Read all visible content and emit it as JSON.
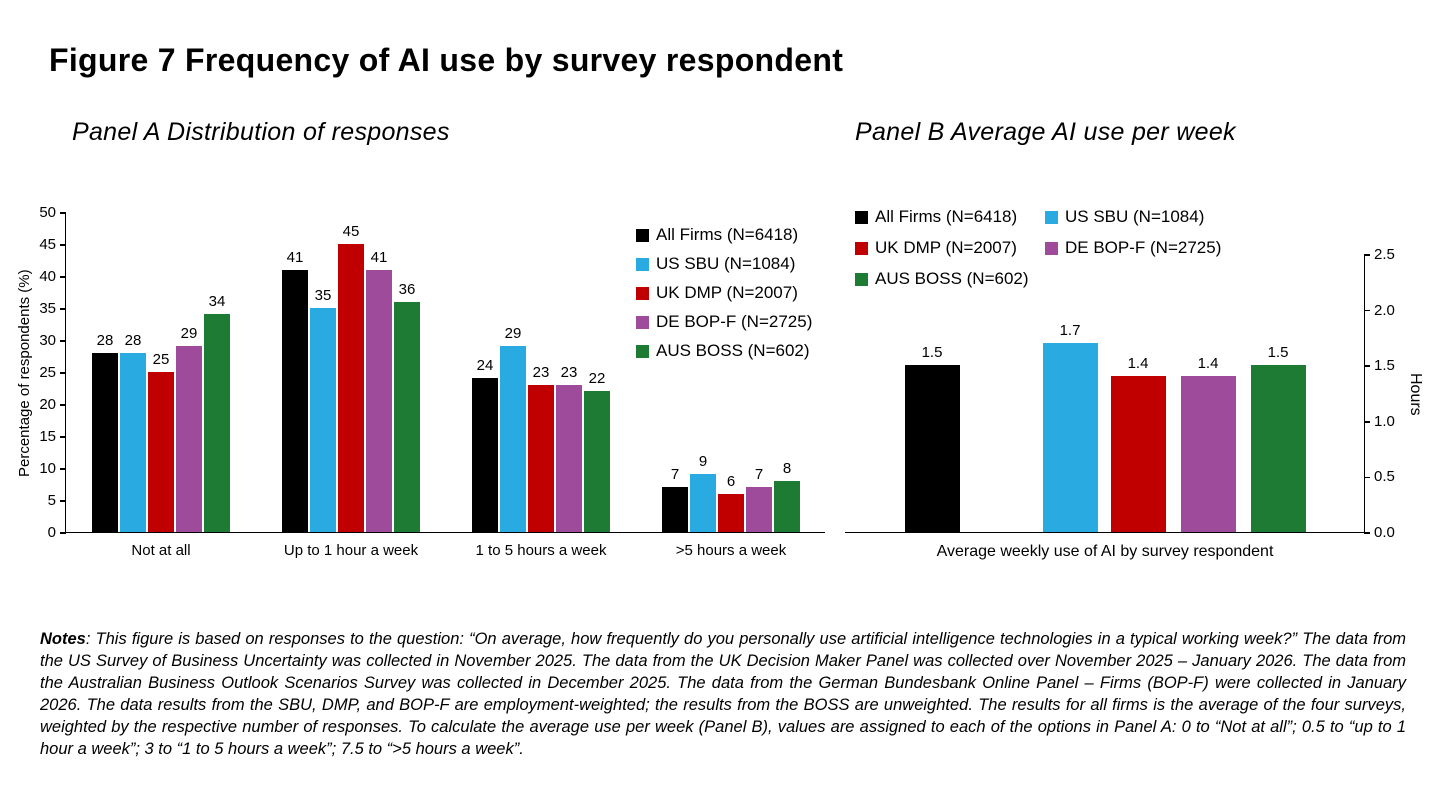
{
  "figure": {
    "title": "Figure 7 Frequency of AI use by survey respondent"
  },
  "chart_data": [
    {
      "type": "bar",
      "title": "Panel A Distribution of responses",
      "categories": [
        "Not at all",
        "Up to 1 hour a week",
        "1 to 5 hours a week",
        ">5 hours a week"
      ],
      "series": [
        {
          "name": "All Firms (N=6418)",
          "color": "#000000",
          "values": [
            28,
            41,
            24,
            7
          ]
        },
        {
          "name": "US SBU (N=1084)",
          "color": "#29ABE2",
          "values": [
            28,
            35,
            29,
            9
          ]
        },
        {
          "name": "UK DMP (N=2007)",
          "color": "#C00000",
          "values": [
            25,
            45,
            23,
            6
          ]
        },
        {
          "name": "DE BOP-F (N=2725)",
          "color": "#9E4B9C",
          "values": [
            29,
            41,
            23,
            7
          ]
        },
        {
          "name": "AUS BOSS (N=602)",
          "color": "#1E7B34",
          "values": [
            34,
            36,
            22,
            8
          ]
        }
      ],
      "xlabel": "",
      "ylabel": "Percentage of respondents (%)",
      "ylim": [
        0,
        50
      ],
      "ytick_step": 5,
      "grid": false,
      "legend_position": "right-overlay"
    },
    {
      "type": "bar",
      "title": "Panel B Average AI use per week",
      "categories": [
        "Average weekly use of AI by survey respondent"
      ],
      "series": [
        {
          "name": "All Firms (N=6418)",
          "color": "#000000",
          "values": [
            1.5
          ]
        },
        {
          "name": "US SBU (N=1084)",
          "color": "#29ABE2",
          "values": [
            1.7
          ]
        },
        {
          "name": "UK DMP (N=2007)",
          "color": "#C00000",
          "values": [
            1.4
          ]
        },
        {
          "name": "DE BOP-F (N=2725)",
          "color": "#9E4B9C",
          "values": [
            1.4
          ]
        },
        {
          "name": "AUS BOSS (N=602)",
          "color": "#1E7B34",
          "values": [
            1.5
          ]
        }
      ],
      "xlabel": "Average weekly use of AI by survey respondent",
      "ylabel": "Hours",
      "ylabel_side": "right",
      "ylim": [
        0,
        2.5
      ],
      "ytick_step": 0.5,
      "grid": false,
      "legend_position": "top"
    }
  ],
  "notes": {
    "label": "Notes",
    "text": ": This figure is based on responses to the question: “On average, how frequently do you personally use artificial intelligence technologies in a typical working week?” The data from the US Survey of Business Uncertainty was collected in November 2025. The data from the UK Decision Maker Panel was collected over November 2025 – January 2026. The data from the Australian Business Outlook Scenarios Survey was collected in December 2025. The data from the German Bundesbank Online Panel – Firms (BOP-F) were collected in January 2026. The data results from the SBU, DMP, and BOP-F are employment-weighted; the results from the BOSS are unweighted. The results for all firms is the average of the four surveys, weighted by the respective number of responses. To calculate the average use per week (Panel B), values are assigned to each of the options in Panel A: 0 to “Not at all”; 0.5 to “up to 1 hour a week”; 3 to “1 to 5 hours a week”; 7.5 to “>5 hours a week”."
  }
}
